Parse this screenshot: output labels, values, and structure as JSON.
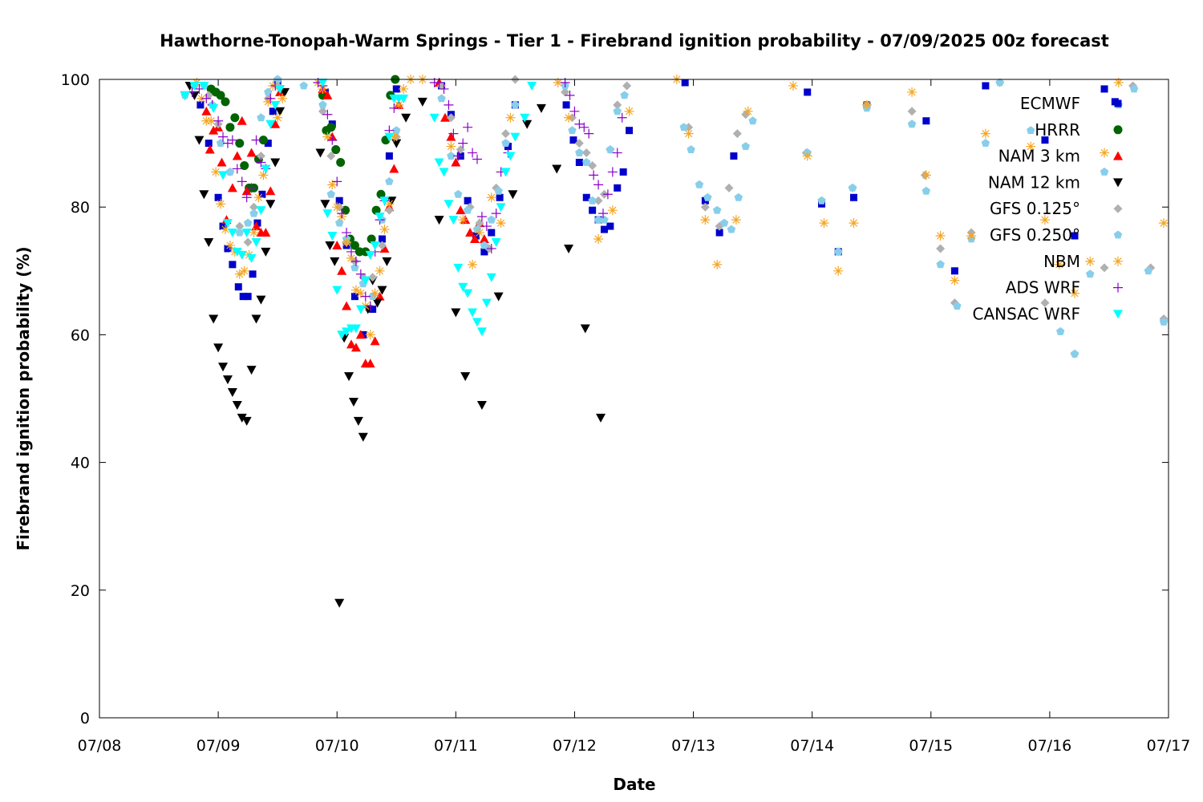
{
  "chart_data": {
    "type": "scatter",
    "title": "Hawthorne-Tonopah-Warm Springs - Tier 1 - Firebrand ignition probability - 07/09/2025 00z forecast",
    "xlabel": "Date",
    "ylabel": "Firebrand ignition probability (%)",
    "x_unit": "days",
    "xlim": [
      "07/08",
      "07/17"
    ],
    "x_ticks": [
      "07/08",
      "07/09",
      "07/10",
      "07/11",
      "07/12",
      "07/13",
      "07/14",
      "07/15",
      "07/16",
      "07/17"
    ],
    "ylim": [
      0,
      100
    ],
    "y_ticks": [
      0,
      20,
      40,
      60,
      80,
      100
    ],
    "grid": false,
    "legend_position": "top-right",
    "series": [
      {
        "name": "ECMWF",
        "marker": "square",
        "color": "#0000cc",
        "x": [
          8.85,
          8.92,
          9.0,
          9.04,
          9.08,
          9.12,
          9.17,
          9.21,
          9.25,
          9.29,
          9.33,
          9.37,
          9.42,
          9.46,
          9.5,
          9.9,
          9.96,
          10.02,
          10.08,
          10.15,
          10.22,
          10.3,
          10.38,
          10.44,
          10.5,
          10.88,
          10.96,
          11.04,
          11.1,
          11.17,
          11.24,
          11.3,
          11.37,
          11.44,
          11.5,
          11.93,
          11.99,
          12.04,
          12.1,
          12.15,
          12.2,
          12.25,
          12.3,
          12.36,
          12.41,
          12.46,
          12.93,
          13.1,
          13.22,
          13.34,
          13.96,
          14.08,
          14.22,
          14.35,
          14.46,
          14.96,
          15.2,
          15.46,
          15.96,
          16.21,
          16.46,
          16.55
        ],
        "y": [
          96,
          90,
          81.5,
          77,
          73.5,
          71,
          67.5,
          66,
          66,
          69.5,
          77.5,
          82,
          90,
          95,
          99.5,
          98,
          93,
          81,
          74,
          66,
          60,
          64,
          75,
          88,
          98.5,
          99,
          94.5,
          88,
          81,
          75.5,
          73,
          76,
          81.5,
          89.5,
          96,
          96,
          90.5,
          87,
          81.5,
          79.5,
          78,
          76.5,
          77,
          83,
          85.5,
          92,
          99.5,
          81,
          76,
          88,
          98,
          80.5,
          73,
          81.5,
          96,
          93.5,
          70,
          99,
          90.5,
          75.5,
          98.5,
          96.5
        ]
      },
      {
        "name": "HRRR",
        "marker": "circle",
        "color": "#006400",
        "x": [
          8.94,
          8.98,
          9.02,
          9.06,
          9.1,
          9.14,
          9.18,
          9.22,
          9.26,
          9.3,
          9.34,
          9.38,
          9.88,
          9.91,
          9.95,
          9.99,
          10.03,
          10.07,
          10.11,
          10.15,
          10.19,
          10.24,
          10.29,
          10.33,
          10.37,
          10.41,
          10.45,
          10.49
        ],
        "y": [
          98.5,
          98,
          97.5,
          96.5,
          92.5,
          94,
          90,
          86.5,
          83,
          83,
          87.5,
          90.5,
          97.5,
          92,
          92.5,
          89,
          87,
          79.5,
          75,
          74,
          73,
          73,
          75,
          79.5,
          82,
          90.5,
          97.5,
          100
        ]
      },
      {
        "name": "NAM 3 km",
        "marker": "triangle-up",
        "color": "#ff0000",
        "x": [
          8.9,
          8.93,
          8.96,
          9.0,
          9.03,
          9.07,
          9.12,
          9.16,
          9.2,
          9.24,
          9.28,
          9.32,
          9.36,
          9.4,
          9.44,
          9.48,
          9.52,
          9.88,
          9.92,
          9.96,
          10.0,
          10.04,
          10.08,
          10.12,
          10.16,
          10.2,
          10.24,
          10.28,
          10.32,
          10.36,
          10.4,
          10.44,
          10.48,
          10.52,
          10.86,
          10.91,
          10.96,
          11.0,
          11.04,
          11.08,
          11.12,
          11.16,
          11.2,
          11.24
        ],
        "y": [
          95,
          89,
          92,
          92.5,
          87,
          78,
          83,
          88,
          93.5,
          82.5,
          88.5,
          77,
          76,
          76,
          82.5,
          93,
          98,
          98.5,
          97.5,
          91,
          74,
          70,
          64.5,
          58.5,
          58,
          60,
          55.5,
          55.5,
          59,
          66,
          73.5,
          80,
          86,
          96,
          99.5,
          94,
          91,
          87,
          79.5,
          78,
          76,
          75,
          77.5,
          75
        ]
      },
      {
        "name": "NAM 12 km",
        "marker": "triangle-down",
        "color": "#000000",
        "x": [
          8.72,
          8.76,
          8.8,
          8.84,
          8.88,
          8.92,
          8.96,
          9.0,
          9.04,
          9.08,
          9.12,
          9.16,
          9.2,
          9.24,
          9.28,
          9.32,
          9.36,
          9.4,
          9.44,
          9.48,
          9.52,
          9.56,
          9.86,
          9.9,
          9.94,
          9.98,
          10.02,
          10.06,
          10.1,
          10.14,
          10.18,
          10.22,
          10.26,
          10.3,
          10.34,
          10.38,
          10.42,
          10.46,
          10.5,
          10.58,
          10.72,
          10.86,
          11.0,
          11.08,
          11.22,
          11.36,
          11.48,
          11.6,
          11.72,
          11.85,
          11.95,
          12.09,
          12.22
        ],
        "y": [
          97.5,
          99,
          97.5,
          90.5,
          82,
          74.5,
          62.5,
          58,
          55,
          53,
          51,
          49,
          47,
          46.5,
          54.5,
          62.5,
          65.5,
          73,
          80.5,
          87,
          95,
          98,
          88.5,
          80.5,
          74,
          71.5,
          18,
          59.5,
          53.5,
          49.5,
          46.5,
          44,
          64,
          68.5,
          65,
          67,
          71.5,
          81,
          90,
          94,
          96.5,
          78,
          63.5,
          53.5,
          49,
          66,
          82,
          93,
          95.5,
          86,
          73.5,
          61,
          47
        ]
      },
      {
        "name": "GFS 0.125°",
        "marker": "diamond",
        "color": "#b0b0b0",
        "x": [
          8.92,
          9.0,
          9.1,
          9.18,
          9.25,
          9.3,
          9.36,
          9.42,
          9.5,
          9.88,
          9.95,
          10.02,
          10.08,
          10.15,
          10.22,
          10.3,
          10.38,
          10.44,
          10.5,
          10.88,
          10.96,
          11.04,
          11.12,
          11.2,
          11.28,
          11.34,
          11.42,
          11.5,
          11.92,
          11.98,
          12.04,
          12.1,
          12.15,
          12.2,
          12.25,
          12.3,
          12.36,
          12.44,
          12.96,
          13.1,
          13.22,
          13.3,
          13.37,
          13.44,
          13.95,
          14.22,
          14.34,
          14.46,
          14.84,
          14.95,
          15.08,
          15.2,
          15.34,
          15.58,
          15.96,
          16.21,
          16.46,
          16.7,
          16.85,
          16.96
        ],
        "y": [
          97.5,
          93,
          85.5,
          77,
          74.5,
          80,
          88,
          97,
          99,
          95,
          88,
          80,
          74.5,
          71.5,
          69,
          69,
          74,
          79.5,
          91,
          99,
          94,
          89,
          80,
          77.5,
          73.5,
          83,
          91.5,
          100,
          98,
          94,
          90,
          88.5,
          86.5,
          81,
          82,
          89,
          96,
          99,
          92.5,
          80,
          77,
          83,
          91.5,
          94.5,
          88.5,
          73,
          83,
          96,
          95,
          85,
          73.5,
          65,
          76,
          99.5,
          65,
          57,
          70.5,
          99,
          70.5,
          62.5
        ]
      },
      {
        "name": "GFS 0.250°",
        "marker": "pentagon",
        "color": "#87ceeb",
        "x": [
          8.72,
          8.8,
          8.88,
          8.95,
          9.02,
          9.1,
          9.18,
          9.25,
          9.3,
          9.36,
          9.42,
          9.5,
          9.72,
          9.88,
          9.95,
          10.02,
          10.08,
          10.15,
          10.22,
          10.3,
          10.38,
          10.44,
          10.5,
          10.88,
          10.96,
          11.02,
          11.1,
          11.18,
          11.24,
          11.3,
          11.36,
          11.42,
          11.5,
          11.92,
          11.98,
          12.04,
          12.1,
          12.15,
          12.2,
          12.25,
          12.3,
          12.36,
          12.42,
          12.92,
          12.98,
          13.05,
          13.12,
          13.2,
          13.26,
          13.32,
          13.38,
          13.44,
          13.5,
          13.96,
          14.08,
          14.22,
          14.34,
          14.46,
          14.84,
          14.96,
          15.08,
          15.22,
          15.34,
          15.46,
          15.58,
          15.84,
          16.09,
          16.21,
          16.34,
          16.46,
          16.58,
          16.71,
          16.83,
          16.96
        ],
        "y": [
          97.5,
          99,
          99,
          96,
          90,
          85.5,
          76,
          77.5,
          79,
          94,
          98,
          100,
          99,
          96,
          82,
          77.5,
          75,
          70.5,
          68,
          66,
          78,
          84,
          92,
          97,
          88,
          82,
          79.5,
          76.5,
          74,
          78,
          82.5,
          90,
          96,
          99,
          92,
          88.5,
          87,
          81,
          78,
          78,
          89,
          95,
          97.5,
          92.5,
          89,
          83.5,
          81.5,
          79.5,
          77.5,
          76.5,
          81.5,
          89.5,
          93.5,
          88.5,
          81,
          73,
          83,
          95.5,
          93,
          82.5,
          71,
          64.5,
          75,
          90,
          99.5,
          92,
          60.5,
          57,
          69.5,
          85.5,
          96,
          98.5,
          70,
          62
        ]
      },
      {
        "name": "NBM",
        "marker": "asterisk",
        "color": "#f5a623",
        "x": [
          8.82,
          8.86,
          8.9,
          8.94,
          8.98,
          9.02,
          9.06,
          9.1,
          9.14,
          9.18,
          9.22,
          9.26,
          9.3,
          9.34,
          9.38,
          9.42,
          9.46,
          9.5,
          9.54,
          9.84,
          9.88,
          9.92,
          9.96,
          10.0,
          10.04,
          10.08,
          10.12,
          10.16,
          10.2,
          10.24,
          10.28,
          10.32,
          10.36,
          10.4,
          10.44,
          10.48,
          10.52,
          10.56,
          10.62,
          10.72,
          10.96,
          11.06,
          11.14,
          11.2,
          11.3,
          11.38,
          11.46,
          11.86,
          11.95,
          12.2,
          12.32,
          12.46,
          12.86,
          12.96,
          13.1,
          13.2,
          13.36,
          13.46,
          13.84,
          13.96,
          14.1,
          14.22,
          14.35,
          14.46,
          14.84,
          14.96,
          15.08,
          15.2,
          15.34,
          15.46,
          15.84,
          15.96,
          16.08,
          16.21,
          16.34,
          16.46,
          16.58,
          16.96
        ],
        "y": [
          99.5,
          97,
          93.5,
          93.5,
          85.5,
          80.5,
          76.5,
          74,
          73,
          69.5,
          70,
          72.5,
          76,
          81.5,
          85,
          96.5,
          99,
          94,
          97,
          99.5,
          98.5,
          91,
          83.5,
          80,
          78.5,
          74.5,
          72,
          67,
          66.5,
          64.5,
          60,
          66.5,
          70,
          76.5,
          80.5,
          91,
          96,
          98.5,
          100,
          100,
          89.5,
          78,
          71,
          76,
          81.5,
          77.5,
          94,
          99.5,
          94,
          75,
          79.5,
          95,
          100,
          91.5,
          78,
          71,
          78,
          95,
          99,
          88,
          77.5,
          70,
          77.5,
          96,
          98,
          85,
          75.5,
          68.5,
          75.5,
          91.5,
          89.5,
          78,
          71,
          66.5,
          71.5,
          88.5,
          99.5,
          77.5
        ]
      },
      {
        "name": "ADS WRF",
        "marker": "plus",
        "color": "#8b00cc",
        "x": [
          8.78,
          8.84,
          8.9,
          8.95,
          9.0,
          9.04,
          9.08,
          9.12,
          9.16,
          9.2,
          9.24,
          9.28,
          9.32,
          9.36,
          9.4,
          9.44,
          9.48,
          9.84,
          9.88,
          9.92,
          9.96,
          10.0,
          10.04,
          10.08,
          10.12,
          10.16,
          10.2,
          10.24,
          10.28,
          10.32,
          10.36,
          10.4,
          10.44,
          10.48,
          10.82,
          10.86,
          10.9,
          10.94,
          10.98,
          11.02,
          11.06,
          11.1,
          11.14,
          11.18,
          11.22,
          11.26,
          11.3,
          11.34,
          11.38,
          11.44,
          11.92,
          11.96,
          12.0,
          12.04,
          12.08,
          12.12,
          12.16,
          12.2,
          12.24,
          12.28,
          12.32,
          12.36,
          12.4
        ],
        "y": [
          98,
          98.5,
          97,
          96,
          93.5,
          91,
          90,
          90.5,
          86,
          84,
          81.5,
          83,
          90.5,
          87,
          86,
          97,
          99,
          99.5,
          99,
          94.5,
          90.5,
          84,
          79,
          76,
          73,
          71.5,
          69.5,
          66,
          64.5,
          73,
          78,
          81,
          92,
          95.5,
          99.5,
          99.5,
          98.5,
          96,
          91.5,
          88,
          90,
          92.5,
          88.5,
          87.5,
          78.5,
          77,
          73.5,
          79,
          85.5,
          88.5,
          99.5,
          97.5,
          95,
          93,
          92.5,
          91.5,
          85,
          83.5,
          79,
          82,
          85.5,
          88.5,
          94
        ]
      },
      {
        "name": "CANSAC WRF",
        "marker": "triangle-down",
        "color": "#00ffff",
        "x": [
          8.72,
          8.8,
          8.88,
          8.96,
          9.04,
          9.08,
          9.12,
          9.16,
          9.2,
          9.24,
          9.28,
          9.32,
          9.36,
          9.4,
          9.44,
          9.48,
          9.52,
          9.88,
          9.92,
          9.96,
          10.0,
          10.04,
          10.08,
          10.12,
          10.16,
          10.2,
          10.24,
          10.28,
          10.32,
          10.36,
          10.4,
          10.44,
          10.48,
          10.52,
          10.56,
          10.82,
          10.86,
          10.9,
          10.94,
          10.98,
          11.02,
          11.06,
          11.1,
          11.14,
          11.18,
          11.22,
          11.26,
          11.3,
          11.34,
          11.38,
          11.42,
          11.46,
          11.5,
          11.58,
          11.64
        ],
        "y": [
          97.5,
          99,
          99,
          95.5,
          85,
          77.5,
          76,
          73,
          72.5,
          76,
          72,
          74.5,
          79.5,
          86,
          93,
          96,
          98.5,
          99.5,
          79,
          75.5,
          67,
          60,
          60.5,
          61,
          61,
          64,
          68.5,
          72.5,
          74,
          78.5,
          81,
          91,
          97,
          97,
          97,
          94,
          87,
          85.5,
          80.5,
          78,
          70.5,
          67.5,
          66.5,
          63.5,
          62,
          60.5,
          65,
          69,
          74.5,
          80,
          85.5,
          88,
          91,
          94,
          99
        ]
      }
    ]
  }
}
